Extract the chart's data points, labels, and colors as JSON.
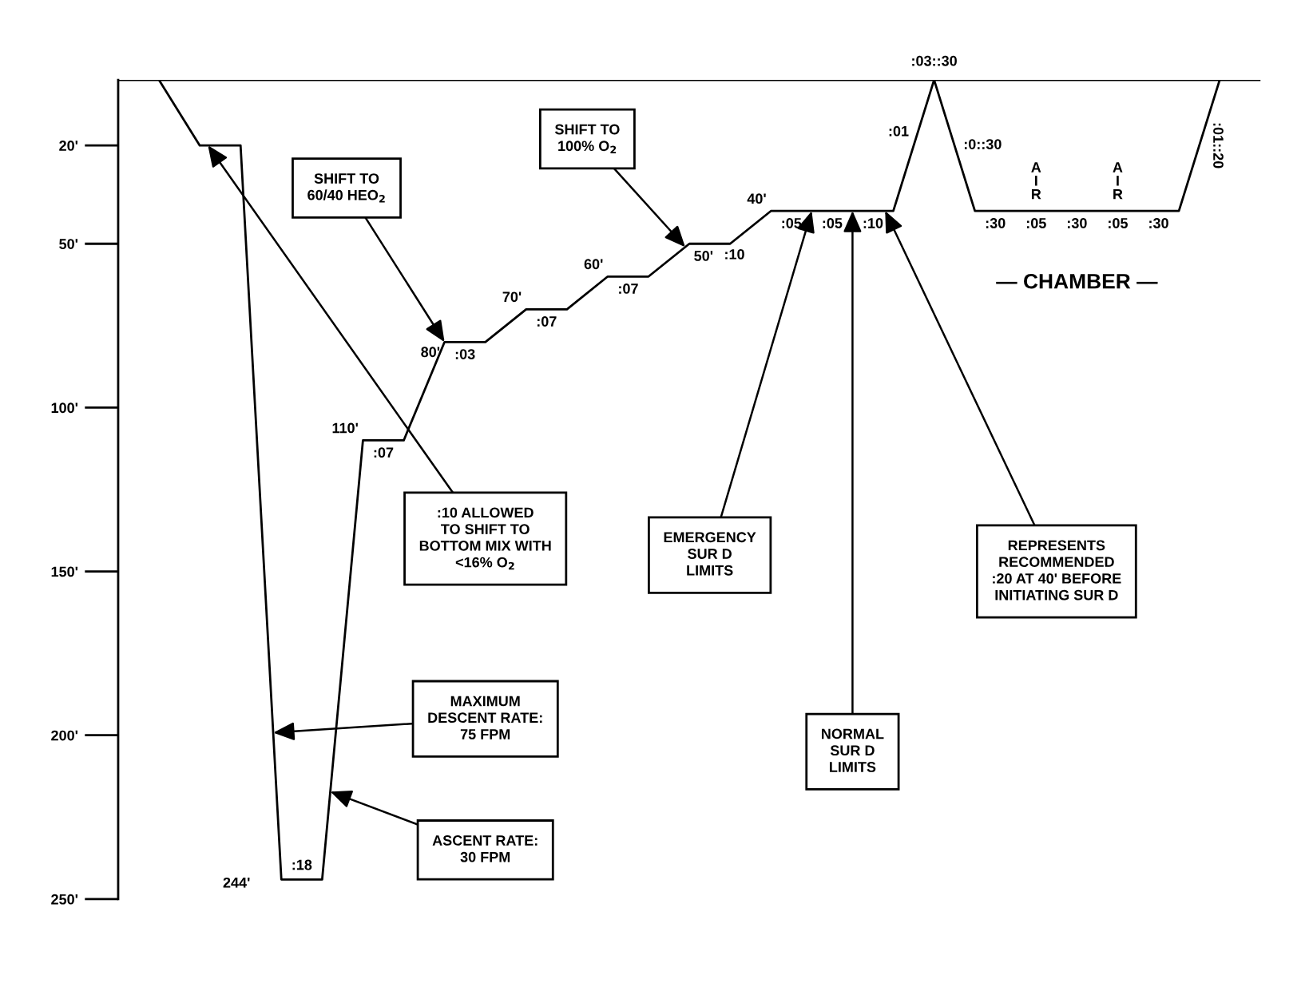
{
  "chart_data": {
    "type": "line",
    "categories": [
      null,
      null,
      null,
      null,
      null,
      null,
      null,
      null,
      null,
      null,
      null,
      null,
      null,
      null,
      null,
      null,
      null,
      null,
      null,
      null,
      null,
      null,
      null,
      null,
      null,
      null,
      null
    ],
    "series": [
      {
        "color": "#000000",
        "values": [
          0,
          20,
          20,
          244,
          244,
          110,
          110,
          80,
          80,
          70,
          70,
          60,
          60,
          50,
          50,
          40,
          40,
          40,
          40,
          0,
          40,
          40,
          40,
          40,
          40,
          40,
          0
        ]
      }
    ],
    "ylim": [
      250,
      0
    ],
    "yticks": [
      {
        "value": 20,
        "label": "20'"
      },
      {
        "value": 50,
        "label": "50'"
      },
      {
        "value": 100,
        "label": "100'"
      },
      {
        "value": 150,
        "label": "150'"
      },
      {
        "value": 200,
        "label": "200'"
      },
      {
        "value": 250,
        "label": "250'"
      }
    ],
    "tick_labels": "y",
    "ref_lines": [
      {
        "axis": "y",
        "value": 0,
        "color": "#000000"
      }
    ],
    "annotations": [
      "SHIFT TO\n60/40 HEO$_{2}$",
      "SHIFT TO\n100% O$_{2}$",
      ":10 ALLOWED\nTO SHIFT TO\nBOTTOM MIX WITH\n<16% O$_{2}$",
      "MAXIMUM\nDESCENT RATE:\n75 FPM",
      "ASCENT RATE:\n30 FPM",
      "EMERGENCY\nSUR D\nLIMITS",
      "NORMAL\nSUR D\nLIMITS",
      "REPRESENTS\nRECOMMENDED\n:20 AT 40' BEFORE\nINITIATING SUR D",
      "— CHAMBER —",
      "244'",
      ":18",
      "110'",
      ":07",
      "80'",
      ":03",
      "70'",
      ":07",
      "60'",
      ":07",
      "50'",
      ":10",
      "40'",
      ":05",
      ":05",
      ":10",
      ":01",
      ":03::30",
      ":0::30",
      ":30",
      ":05",
      ":30",
      ":05",
      ":30",
      ":01::20",
      "A\nI\nR",
      "A\nI\nR"
    ]
  }
}
